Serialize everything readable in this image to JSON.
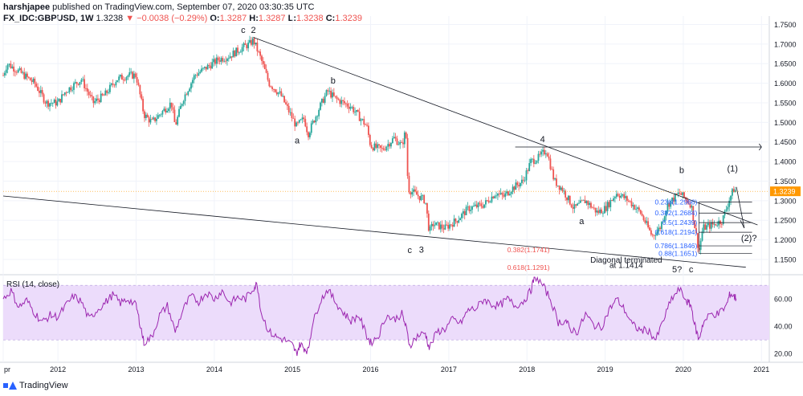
{
  "header": {
    "publisher": "harshjapee",
    "published_text": " published on TradingView.com, September 07, 2020 03:30:35 UTC",
    "symbol": "FX_IDC:GBPUSD, 1W",
    "last": "1.3238",
    "change": "▼ −0.0038 (−0.29%)",
    "o_label": "O:",
    "o": "1.3287",
    "h_label": "H:",
    "h": "1.3287",
    "l_label": "L:",
    "l": "1.3238",
    "c_label": "C:",
    "c": "1.3239"
  },
  "footer": {
    "brand": "TradingView"
  },
  "colors": {
    "up": "#26a69a",
    "down": "#ef5350",
    "rsi": "#9c27b0",
    "rsi_band": "#ecdcfb",
    "price_tag": "#ff9800",
    "fib": "#2962ff"
  },
  "chart_data": [
    {
      "type": "candlestick",
      "series": [
        {
          "name": "FX_IDC:GBPUSD"
        }
      ],
      "current_price_label": "1.3239",
      "y_ticks": [
        "1.7500",
        "1.7000",
        "1.6500",
        "1.6000",
        "1.5500",
        "1.5000",
        "1.4500",
        "1.4000",
        "1.3500",
        "1.3000",
        "1.2500",
        "1.2000",
        "1.1500"
      ],
      "ylim": [
        1.115,
        1.755
      ],
      "x_ticks": [
        "pr",
        "2012",
        "2013",
        "2014",
        "2015",
        "2016",
        "2017",
        "2018",
        "2019",
        "2020",
        "2021"
      ],
      "xlim": [
        2011.3,
        2021.1
      ],
      "close_path": [
        [
          2011.3,
          1.62
        ],
        [
          2011.35,
          1.65
        ],
        [
          2011.5,
          1.63
        ],
        [
          2011.7,
          1.6
        ],
        [
          2011.85,
          1.55
        ],
        [
          2012.0,
          1.55
        ],
        [
          2012.1,
          1.58
        ],
        [
          2012.3,
          1.61
        ],
        [
          2012.45,
          1.55
        ],
        [
          2012.6,
          1.57
        ],
        [
          2012.75,
          1.61
        ],
        [
          2012.9,
          1.62
        ],
        [
          2013.0,
          1.62
        ],
        [
          2013.1,
          1.52
        ],
        [
          2013.2,
          1.5
        ],
        [
          2013.35,
          1.53
        ],
        [
          2013.45,
          1.55
        ],
        [
          2013.5,
          1.49
        ],
        [
          2013.6,
          1.56
        ],
        [
          2013.75,
          1.62
        ],
        [
          2013.9,
          1.64
        ],
        [
          2014.05,
          1.66
        ],
        [
          2014.2,
          1.67
        ],
        [
          2014.35,
          1.69
        ],
        [
          2014.45,
          1.7
        ],
        [
          2014.5,
          1.71
        ],
        [
          2014.6,
          1.66
        ],
        [
          2014.7,
          1.6
        ],
        [
          2014.85,
          1.57
        ],
        [
          2015.0,
          1.51
        ],
        [
          2015.05,
          1.49
        ],
        [
          2015.15,
          1.51
        ],
        [
          2015.2,
          1.47
        ],
        [
          2015.35,
          1.54
        ],
        [
          2015.45,
          1.58
        ],
        [
          2015.55,
          1.56
        ],
        [
          2015.75,
          1.54
        ],
        [
          2015.95,
          1.49
        ],
        [
          2016.0,
          1.44
        ],
        [
          2016.15,
          1.43
        ],
        [
          2016.3,
          1.46
        ],
        [
          2016.4,
          1.44
        ],
        [
          2016.45,
          1.48
        ],
        [
          2016.48,
          1.33
        ],
        [
          2016.55,
          1.32
        ],
        [
          2016.7,
          1.3
        ],
        [
          2016.75,
          1.22
        ],
        [
          2016.8,
          1.24
        ],
        [
          2016.95,
          1.23
        ],
        [
          2017.1,
          1.25
        ],
        [
          2017.25,
          1.28
        ],
        [
          2017.45,
          1.29
        ],
        [
          2017.6,
          1.32
        ],
        [
          2017.7,
          1.31
        ],
        [
          2017.8,
          1.33
        ],
        [
          2017.95,
          1.35
        ],
        [
          2018.05,
          1.4
        ],
        [
          2018.15,
          1.41
        ],
        [
          2018.25,
          1.43
        ],
        [
          2018.35,
          1.35
        ],
        [
          2018.45,
          1.33
        ],
        [
          2018.6,
          1.28
        ],
        [
          2018.75,
          1.3
        ],
        [
          2018.9,
          1.27
        ],
        [
          2019.0,
          1.28
        ],
        [
          2019.15,
          1.32
        ],
        [
          2019.3,
          1.3
        ],
        [
          2019.45,
          1.27
        ],
        [
          2019.6,
          1.21
        ],
        [
          2019.7,
          1.23
        ],
        [
          2019.8,
          1.29
        ],
        [
          2019.95,
          1.32
        ],
        [
          2020.0,
          1.31
        ],
        [
          2020.1,
          1.29
        ],
        [
          2020.2,
          1.17
        ],
        [
          2020.25,
          1.23
        ],
        [
          2020.4,
          1.24
        ],
        [
          2020.5,
          1.25
        ],
        [
          2020.6,
          1.31
        ],
        [
          2020.65,
          1.33
        ],
        [
          2020.68,
          1.3239
        ]
      ]
    },
    {
      "type": "line",
      "title": "RSI (14, close)",
      "series": [
        {
          "name": "RSI"
        }
      ],
      "y_ticks": [
        "60.00",
        "40.00",
        "20.00"
      ],
      "ylim": [
        16,
        76
      ],
      "band": [
        30,
        70
      ],
      "points": [
        [
          2011.3,
          60
        ],
        [
          2011.4,
          66
        ],
        [
          2011.5,
          54
        ],
        [
          2011.6,
          59
        ],
        [
          2011.7,
          50
        ],
        [
          2011.8,
          43
        ],
        [
          2011.9,
          48
        ],
        [
          2012.0,
          47
        ],
        [
          2012.1,
          55
        ],
        [
          2012.2,
          62
        ],
        [
          2012.3,
          58
        ],
        [
          2012.4,
          45
        ],
        [
          2012.5,
          52
        ],
        [
          2012.6,
          57
        ],
        [
          2012.7,
          63
        ],
        [
          2012.8,
          57
        ],
        [
          2012.9,
          60
        ],
        [
          2013.0,
          55
        ],
        [
          2013.05,
          42
        ],
        [
          2013.1,
          28
        ],
        [
          2013.2,
          32
        ],
        [
          2013.3,
          48
        ],
        [
          2013.4,
          55
        ],
        [
          2013.5,
          36
        ],
        [
          2013.6,
          52
        ],
        [
          2013.7,
          62
        ],
        [
          2013.8,
          58
        ],
        [
          2013.9,
          65
        ],
        [
          2014.0,
          60
        ],
        [
          2014.1,
          66
        ],
        [
          2014.2,
          57
        ],
        [
          2014.3,
          61
        ],
        [
          2014.4,
          60
        ],
        [
          2014.5,
          68
        ],
        [
          2014.55,
          71
        ],
        [
          2014.6,
          50
        ],
        [
          2014.7,
          36
        ],
        [
          2014.8,
          32
        ],
        [
          2014.9,
          30
        ],
        [
          2015.0,
          26
        ],
        [
          2015.05,
          20
        ],
        [
          2015.1,
          27
        ],
        [
          2015.15,
          24
        ],
        [
          2015.2,
          22
        ],
        [
          2015.25,
          40
        ],
        [
          2015.35,
          58
        ],
        [
          2015.45,
          67
        ],
        [
          2015.55,
          58
        ],
        [
          2015.65,
          50
        ],
        [
          2015.75,
          44
        ],
        [
          2015.85,
          48
        ],
        [
          2015.95,
          33
        ],
        [
          2016.0,
          28
        ],
        [
          2016.1,
          33
        ],
        [
          2016.2,
          48
        ],
        [
          2016.3,
          45
        ],
        [
          2016.4,
          49
        ],
        [
          2016.45,
          40
        ],
        [
          2016.5,
          26
        ],
        [
          2016.6,
          33
        ],
        [
          2016.7,
          35
        ],
        [
          2016.75,
          24
        ],
        [
          2016.85,
          36
        ],
        [
          2016.95,
          38
        ],
        [
          2017.05,
          45
        ],
        [
          2017.15,
          42
        ],
        [
          2017.25,
          52
        ],
        [
          2017.35,
          53
        ],
        [
          2017.45,
          60
        ],
        [
          2017.55,
          56
        ],
        [
          2017.65,
          55
        ],
        [
          2017.75,
          60
        ],
        [
          2017.85,
          55
        ],
        [
          2017.95,
          58
        ],
        [
          2018.05,
          66
        ],
        [
          2018.1,
          77
        ],
        [
          2018.2,
          70
        ],
        [
          2018.3,
          60
        ],
        [
          2018.4,
          43
        ],
        [
          2018.5,
          44
        ],
        [
          2018.55,
          38
        ],
        [
          2018.65,
          36
        ],
        [
          2018.75,
          49
        ],
        [
          2018.85,
          41
        ],
        [
          2018.95,
          39
        ],
        [
          2019.05,
          52
        ],
        [
          2019.15,
          60
        ],
        [
          2019.25,
          52
        ],
        [
          2019.35,
          41
        ],
        [
          2019.45,
          37
        ],
        [
          2019.55,
          37
        ],
        [
          2019.65,
          30
        ],
        [
          2019.75,
          45
        ],
        [
          2019.85,
          60
        ],
        [
          2019.95,
          67
        ],
        [
          2020.05,
          58
        ],
        [
          2020.1,
          55
        ],
        [
          2020.15,
          40
        ],
        [
          2020.2,
          30
        ],
        [
          2020.25,
          42
        ],
        [
          2020.35,
          49
        ],
        [
          2020.45,
          49
        ],
        [
          2020.55,
          55
        ],
        [
          2020.6,
          64
        ],
        [
          2020.65,
          62
        ],
        [
          2020.68,
          60
        ]
      ]
    }
  ],
  "annotations": {
    "wave_labels": [
      {
        "text": "c",
        "x": 2014.37,
        "y": 1.737
      },
      {
        "text": "2",
        "x": 2014.5,
        "y": 1.737
      },
      {
        "text": "a",
        "x": 2015.06,
        "y": 1.455
      },
      {
        "text": "b",
        "x": 2015.52,
        "y": 1.607
      },
      {
        "text": "4",
        "x": 2018.2,
        "y": 1.458
      },
      {
        "text": "a",
        "x": 2018.7,
        "y": 1.248
      },
      {
        "text": "c",
        "x": 2016.5,
        "y": 1.174
      },
      {
        "text": "3",
        "x": 2016.65,
        "y": 1.176
      },
      {
        "text": "b",
        "x": 2019.98,
        "y": 1.379
      },
      {
        "text": "(1)",
        "x": 2020.63,
        "y": 1.383
      },
      {
        "text": "(2)?",
        "x": 2020.84,
        "y": 1.205
      },
      {
        "text": "5?",
        "x": 2019.92,
        "y": 1.125
      },
      {
        "text": "c",
        "x": 2020.1,
        "y": 1.125
      }
    ],
    "fib_labels": [
      {
        "text": "0.236(1.2966)",
        "y": 1.2966
      },
      {
        "text": "0.382(1.2684)",
        "y": 1.2684
      },
      {
        "text": "0.5(1.2439)",
        "y": 1.2439
      },
      {
        "text": "0.618(1.2194)",
        "y": 1.2194
      },
      {
        "text": "0.786(1.1846)",
        "y": 1.1846
      },
      {
        "text": "0.88(1.1651)",
        "y": 1.1651
      }
    ],
    "red_labels": [
      {
        "text": "0.382(1.1741)",
        "y": 1.1741
      },
      {
        "text": "0.618(1.1291)",
        "y": 1.1291
      }
    ],
    "diagonal_line1": "Diagonal terminated",
    "diagonal_line2": "at 1.1414"
  }
}
